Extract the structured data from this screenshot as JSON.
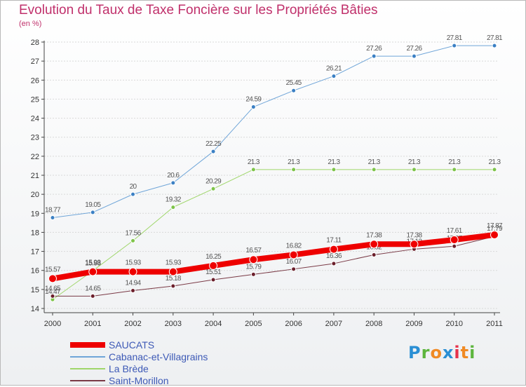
{
  "header": {
    "title": "Evolution du Taux de Taxe Foncière sur les Propriétés Bâties",
    "subtitle": "(en %)"
  },
  "logo": {
    "text": "Proxiti",
    "colors": [
      "#2a8fd4",
      "#5db53d",
      "#f08a24",
      "#2a8fd4",
      "#e6334b",
      "#f08a24",
      "#5db53d"
    ]
  },
  "colors": {
    "title": "#c0306b",
    "axis": "#444444",
    "grid": "#d9d9d9",
    "label": "#555555",
    "legend_text": "#3d59b6"
  },
  "chart_data": {
    "type": "line",
    "title": "Evolution du Taux de Taxe Foncière sur les Propriétés Bâties",
    "ylabel": "(en %)",
    "xlabel": "",
    "x": [
      "2000",
      "2001",
      "2002",
      "2003",
      "2004",
      "2005",
      "2006",
      "2007",
      "2008",
      "2009",
      "2010",
      "2011"
    ],
    "ylim": [
      14,
      28
    ],
    "yticks": [
      "14",
      "15",
      "16",
      "17",
      "18",
      "19",
      "20",
      "21",
      "22",
      "23",
      "24",
      "25",
      "26",
      "27",
      "28"
    ],
    "grid": "horizontal",
    "legend_position": "bottom-left",
    "series": [
      {
        "name": "Cabanac-et-Villagrains",
        "color": "#6fa5d8",
        "marker": "#3b80c4",
        "width": 1,
        "values": [
          18.77,
          19.05,
          20,
          20.6,
          22.25,
          24.59,
          25.45,
          26.21,
          27.26,
          27.26,
          27.81,
          27.81
        ],
        "labels": [
          "18.77",
          "19.05",
          "20",
          "20.6",
          "22.25",
          "24.59",
          "25.45",
          "26.21",
          "27.26",
          "27.26",
          "27.81",
          "27.81"
        ]
      },
      {
        "name": "La Brède",
        "color": "#9fd66a",
        "marker": "#7ec44a",
        "width": 1,
        "values": [
          14.47,
          15.98,
          17.56,
          19.32,
          20.29,
          21.3,
          21.3,
          21.3,
          21.3,
          21.3,
          21.3,
          21.3
        ],
        "labels": [
          "14.47",
          "15.98",
          "17.56",
          "19.32",
          "20.29",
          "21.3",
          "21.3",
          "21.3",
          "21.3",
          "21.3",
          "21.3",
          "21.3"
        ]
      },
      {
        "name": "Saint-Morillon",
        "color": "#7a3a46",
        "marker": "#6b1f2b",
        "width": 1,
        "values": [
          14.65,
          14.65,
          14.94,
          15.18,
          15.51,
          15.79,
          16.07,
          16.36,
          16.82,
          17.12,
          17.27,
          17.79
        ],
        "labels": [
          "14.65",
          "14.65",
          "14.94",
          "15.18",
          "15.51",
          "15.79",
          "16.07",
          "16.36",
          "16.82",
          "17.12",
          "17.27",
          "17.79"
        ]
      },
      {
        "name": "SAUCATS",
        "color": "#ee0000",
        "marker": "#ee0000",
        "width": 8,
        "values": [
          15.57,
          15.93,
          15.93,
          15.93,
          16.25,
          16.57,
          16.82,
          17.11,
          17.38,
          17.38,
          17.61,
          17.87
        ],
        "labels": [
          "15.57",
          "15.93",
          "15.93",
          "15.93",
          "16.25",
          "16.57",
          "16.82",
          "17.11",
          "17.38",
          "17.38",
          "17.61",
          "17.87"
        ]
      }
    ],
    "legend": [
      "SAUCATS",
      "Cabanac-et-Villagrains",
      "La Brède",
      "Saint-Morillon"
    ]
  }
}
